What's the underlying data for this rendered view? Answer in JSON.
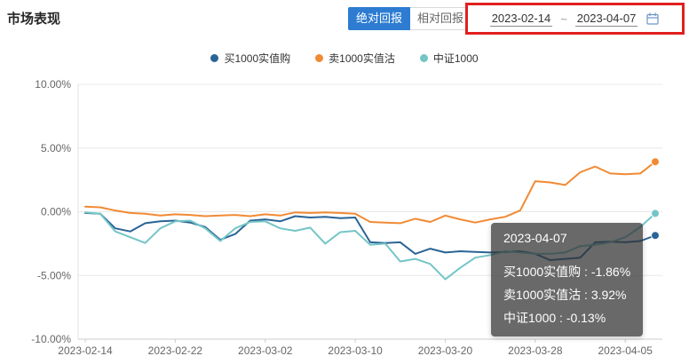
{
  "page": {
    "title": "市场表现"
  },
  "toolbar": {
    "absolute_label": "绝对回报",
    "relative_label": "相对回报"
  },
  "date_range": {
    "start": "2023-02-14",
    "separator": "~",
    "end": "2023-04-07"
  },
  "tooltip": {
    "date": "2023-04-07",
    "rows": [
      "买1000实值购 : -1.86%",
      "卖1000实值沽 : 3.92%",
      "中证1000 : -0.13%"
    ]
  },
  "colors": {
    "accent_blue": "#2d7cd1",
    "annotation_red": "#e21f1f",
    "series_buy": "#2a6496",
    "series_sell": "#f18a34",
    "series_index": "#74c5c6"
  },
  "chart_data": {
    "type": "line",
    "title": "",
    "xlabel": "",
    "ylabel": "",
    "ylim": [
      -10,
      10
    ],
    "grid": true,
    "legend_position": "top",
    "x_tick_interval": 6,
    "y_ticks": [
      {
        "value": 10,
        "label": "10.00%"
      },
      {
        "value": 5,
        "label": "5.00%"
      },
      {
        "value": 0,
        "label": "0.00%"
      },
      {
        "value": -5,
        "label": "-5.00%"
      },
      {
        "value": -10,
        "label": "-10.00%"
      }
    ],
    "x": [
      "2023-02-14",
      "2023-02-15",
      "2023-02-16",
      "2023-02-17",
      "2023-02-20",
      "2023-02-21",
      "2023-02-22",
      "2023-02-23",
      "2023-02-24",
      "2023-02-27",
      "2023-02-28",
      "2023-03-01",
      "2023-03-02",
      "2023-03-03",
      "2023-03-06",
      "2023-03-07",
      "2023-03-08",
      "2023-03-09",
      "2023-03-10",
      "2023-03-13",
      "2023-03-14",
      "2023-03-15",
      "2023-03-16",
      "2023-03-17",
      "2023-03-20",
      "2023-03-21",
      "2023-03-22",
      "2023-03-23",
      "2023-03-24",
      "2023-03-27",
      "2023-03-28",
      "2023-03-29",
      "2023-03-30",
      "2023-03-31",
      "2023-04-03",
      "2023-04-04",
      "2023-04-05",
      "2023-04-06",
      "2023-04-07"
    ],
    "series": [
      {
        "name": "买1000实值购",
        "color": "#2a6496",
        "values": [
          -0.1,
          -0.15,
          -1.3,
          -1.55,
          -0.9,
          -0.75,
          -0.7,
          -0.85,
          -1.2,
          -2.2,
          -1.75,
          -0.7,
          -0.6,
          -0.75,
          -0.35,
          -0.45,
          -0.4,
          -0.5,
          -0.45,
          -2.4,
          -2.45,
          -2.4,
          -3.3,
          -2.9,
          -3.2,
          -3.1,
          -3.15,
          -3.2,
          -3.15,
          -3.1,
          -3.3,
          -3.8,
          -3.7,
          -3.6,
          -2.4,
          -2.35,
          -2.4,
          -2.3,
          -1.86
        ]
      },
      {
        "name": "卖1000实值沽",
        "color": "#f18a34",
        "values": [
          0.4,
          0.35,
          0.1,
          -0.1,
          -0.15,
          -0.3,
          -0.2,
          -0.25,
          -0.35,
          -0.3,
          -0.25,
          -0.35,
          -0.2,
          -0.3,
          -0.05,
          -0.1,
          -0.05,
          -0.1,
          -0.15,
          -0.8,
          -0.85,
          -0.9,
          -0.55,
          -0.8,
          -0.3,
          -0.6,
          -0.85,
          -0.6,
          -0.4,
          0.1,
          2.4,
          2.3,
          2.1,
          3.1,
          3.55,
          3.0,
          2.95,
          3.0,
          3.92
        ]
      },
      {
        "name": "中证1000",
        "color": "#74c5c6",
        "values": [
          -0.05,
          -0.15,
          -1.55,
          -2.0,
          -2.45,
          -1.3,
          -0.75,
          -0.7,
          -1.3,
          -2.3,
          -1.3,
          -0.8,
          -0.75,
          -1.3,
          -1.5,
          -1.25,
          -2.5,
          -1.6,
          -1.5,
          -2.6,
          -2.5,
          -3.9,
          -3.7,
          -4.1,
          -5.3,
          -4.4,
          -3.6,
          -3.4,
          -3.1,
          -3.2,
          -3.3,
          -3.3,
          -3.2,
          -2.7,
          -2.6,
          -2.4,
          -2.0,
          -1.2,
          -0.13
        ]
      }
    ]
  }
}
